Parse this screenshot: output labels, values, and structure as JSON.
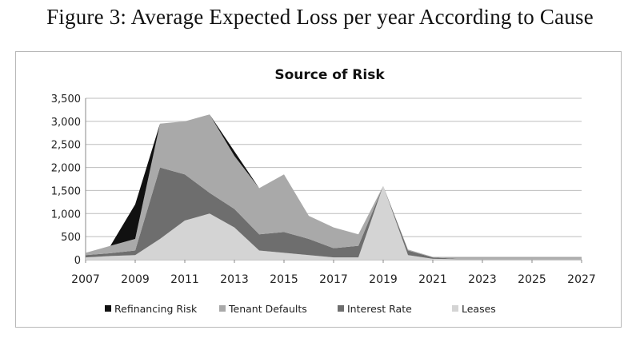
{
  "figure_title": "Figure 3: Average Expected Loss per year According to Cause",
  "chart_data": {
    "type": "area",
    "stacked": true,
    "title": "Source of Risk",
    "xlabel": "",
    "ylabel": "",
    "x": [
      2007,
      2008,
      2009,
      2010,
      2011,
      2012,
      2013,
      2014,
      2015,
      2016,
      2017,
      2018,
      2019,
      2020,
      2021,
      2022,
      2023,
      2024,
      2025,
      2026,
      2027
    ],
    "x_ticks": [
      "2007",
      "2009",
      "2011",
      "2013",
      "2015",
      "2017",
      "2019",
      "2021",
      "2023",
      "2025",
      "2027"
    ],
    "y_ticks": [
      "0",
      "500",
      "1,000",
      "1,500",
      "2,000",
      "2,500",
      "3,000",
      "3,500"
    ],
    "ylim": [
      0,
      3500
    ],
    "xlim": [
      2007,
      2027
    ],
    "grid": "horizontal",
    "legend_position": "bottom",
    "series": [
      {
        "name": "Leases",
        "color": "#d4d4d4",
        "values": [
          50,
          80,
          100,
          450,
          850,
          1000,
          700,
          200,
          150,
          100,
          50,
          50,
          1600,
          100,
          20,
          10,
          10,
          10,
          10,
          10,
          10
        ]
      },
      {
        "name": "Interest Rate",
        "color": "#6e6e6e",
        "values": [
          50,
          60,
          100,
          1550,
          1000,
          450,
          400,
          350,
          450,
          350,
          200,
          250,
          0,
          100,
          30,
          10,
          10,
          10,
          10,
          10,
          10
        ]
      },
      {
        "name": "Tenant Defaults",
        "color": "#a9a9a9",
        "values": [
          50,
          160,
          250,
          950,
          1150,
          1700,
          1150,
          1000,
          1250,
          500,
          450,
          250,
          0,
          20,
          10,
          40,
          40,
          40,
          40,
          40,
          40
        ]
      },
      {
        "name": "Refinancing Risk",
        "color": "#111111",
        "values": [
          0,
          0,
          750,
          0,
          0,
          0,
          100,
          0,
          0,
          0,
          0,
          0,
          0,
          0,
          0,
          0,
          0,
          0,
          0,
          0,
          0
        ]
      }
    ],
    "legend_order": [
      "Refinancing Risk",
      "Tenant Defaults",
      "Interest Rate",
      "Leases"
    ]
  }
}
